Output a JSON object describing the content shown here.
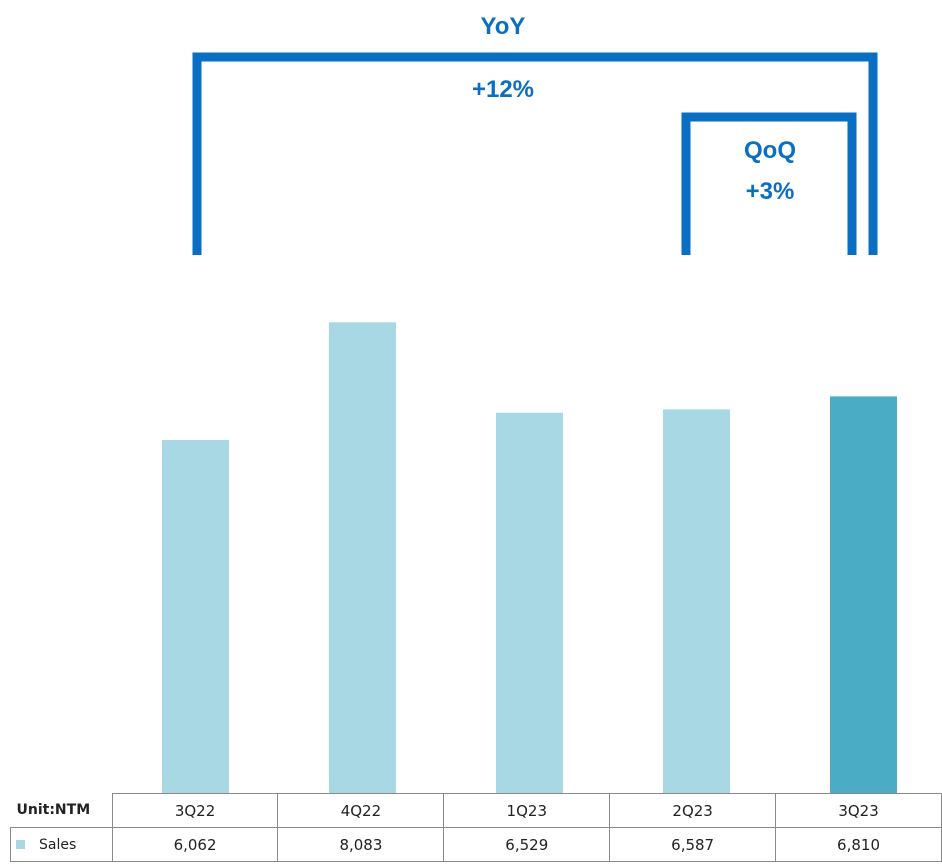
{
  "chart_data": {
    "type": "bar",
    "categories": [
      "3Q22",
      "4Q22",
      "1Q23",
      "2Q23",
      "3Q23"
    ],
    "series": [
      {
        "name": "Sales",
        "values": [
          6062,
          8083,
          6529,
          6587,
          6810
        ]
      }
    ],
    "unit_label": "Unit:NTM",
    "ylim": [
      0,
      8500
    ],
    "grid": false,
    "annotations": {
      "yoy": {
        "title": "YoY",
        "value": "+12%"
      },
      "qoq": {
        "title": "QoQ",
        "value": "+3%"
      }
    },
    "table": {
      "header": "Unit:NTM",
      "row_label": "Sales",
      "values_text": [
        "6,062",
        "8,083",
        "6,529",
        "6,587",
        "6,810"
      ]
    }
  },
  "colors": {
    "bar": "#a8d8e4",
    "bar_highlight": "#4aacc5",
    "bracket": "#0a6fc2",
    "legend": "#a8d8e4"
  }
}
